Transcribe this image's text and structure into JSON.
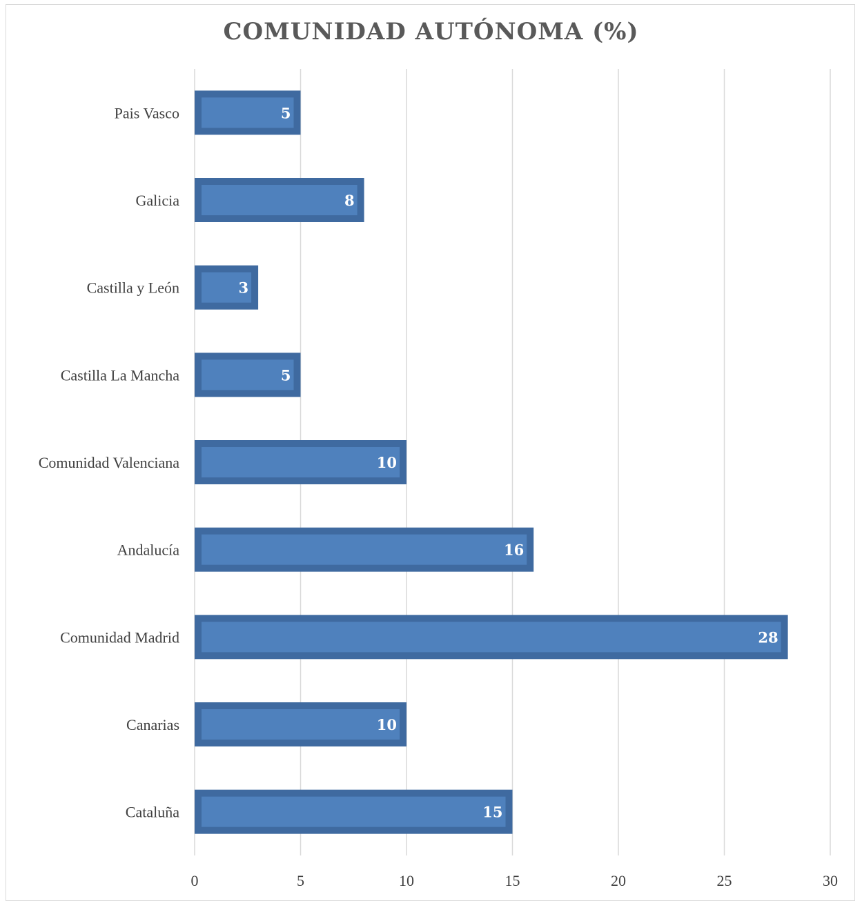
{
  "chart_data": {
    "type": "bar",
    "orientation": "horizontal",
    "title": "COMUNIDAD AUTÓNOMA (%)",
    "categories": [
      "Pais Vasco",
      "Galicia",
      "Castilla y León",
      "Castilla La Mancha",
      "Comunidad Valenciana",
      "Andalucía",
      "Comunidad Madrid",
      "Canarias",
      "Cataluña"
    ],
    "values": [
      5,
      8,
      3,
      5,
      10,
      16,
      28,
      10,
      15
    ],
    "xlim": [
      0,
      30
    ],
    "xticks": [
      0,
      5,
      10,
      15,
      20,
      25,
      30
    ],
    "grid": true,
    "data_labels": true,
    "bar_color": "#4f81bd",
    "bar_border_color": "#3f6aa0"
  }
}
